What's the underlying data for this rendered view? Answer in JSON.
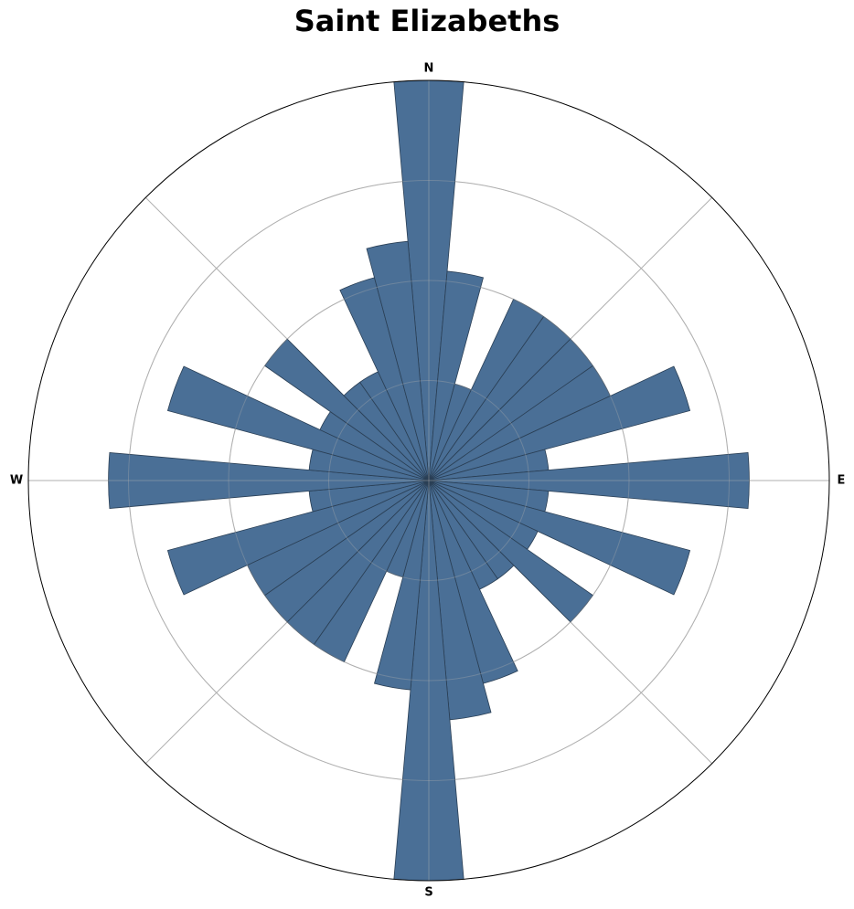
{
  "chart_data": {
    "type": "polar-bar",
    "title": "Saint Elizabeths",
    "direction_labels": [
      "N",
      "E",
      "S",
      "W"
    ],
    "bar_color": "#4a6f96",
    "edge_color": "#2a3f55",
    "grid_color": "#b0b0b0",
    "rmax": 4.0,
    "grid_rings": [
      1,
      2,
      3,
      4
    ],
    "sector_width_deg": 10,
    "sectors": [
      {
        "direction_deg": 0,
        "value": 4.0
      },
      {
        "direction_deg": 10,
        "value": 2.1
      },
      {
        "direction_deg": 20,
        "value": 1.0
      },
      {
        "direction_deg": 30,
        "value": 2.0
      },
      {
        "direction_deg": 40,
        "value": 2.0
      },
      {
        "direction_deg": 50,
        "value": 2.0
      },
      {
        "direction_deg": 60,
        "value": 2.0
      },
      {
        "direction_deg": 70,
        "value": 2.7
      },
      {
        "direction_deg": 80,
        "value": 1.2
      },
      {
        "direction_deg": 90,
        "value": 3.2
      },
      {
        "direction_deg": 100,
        "value": 1.2
      },
      {
        "direction_deg": 110,
        "value": 2.7
      },
      {
        "direction_deg": 120,
        "value": 1.2
      },
      {
        "direction_deg": 130,
        "value": 2.0
      },
      {
        "direction_deg": 140,
        "value": 1.2
      },
      {
        "direction_deg": 150,
        "value": 1.2
      },
      {
        "direction_deg": 160,
        "value": 2.1
      },
      {
        "direction_deg": 170,
        "value": 2.4
      },
      {
        "direction_deg": 180,
        "value": 4.0
      },
      {
        "direction_deg": 190,
        "value": 2.1
      },
      {
        "direction_deg": 200,
        "value": 1.0
      },
      {
        "direction_deg": 210,
        "value": 2.0
      },
      {
        "direction_deg": 220,
        "value": 2.0
      },
      {
        "direction_deg": 230,
        "value": 2.0
      },
      {
        "direction_deg": 240,
        "value": 2.0
      },
      {
        "direction_deg": 250,
        "value": 2.7
      },
      {
        "direction_deg": 260,
        "value": 1.2
      },
      {
        "direction_deg": 270,
        "value": 3.2
      },
      {
        "direction_deg": 280,
        "value": 1.2
      },
      {
        "direction_deg": 290,
        "value": 2.7
      },
      {
        "direction_deg": 300,
        "value": 1.2
      },
      {
        "direction_deg": 310,
        "value": 2.0
      },
      {
        "direction_deg": 320,
        "value": 1.2
      },
      {
        "direction_deg": 330,
        "value": 1.2
      },
      {
        "direction_deg": 340,
        "value": 2.1
      },
      {
        "direction_deg": 350,
        "value": 2.4
      }
    ]
  }
}
